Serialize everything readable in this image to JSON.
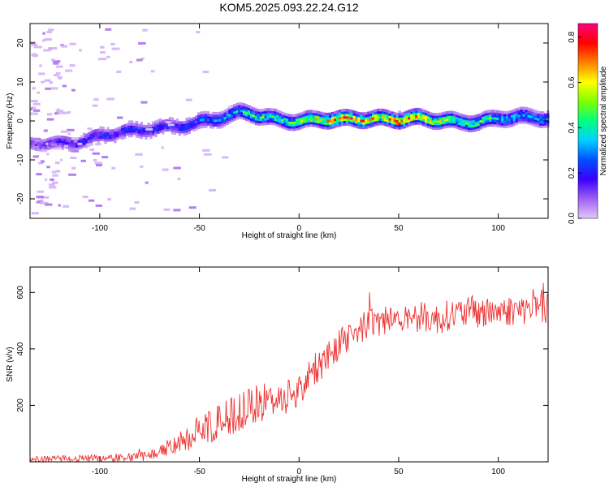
{
  "title": "KOM5.2025.093.22.24.G12",
  "chart_data": [
    {
      "type": "heatmap",
      "xlabel": "Height of straight line (km)",
      "ylabel": "Frequency (Hz)",
      "xlim": [
        -135,
        125
      ],
      "ylim": [
        -25,
        25
      ],
      "x_ticks": [
        -100,
        -50,
        0,
        50,
        100
      ],
      "x_tick_labels": [
        "-100",
        "-50",
        "0",
        "50",
        "100"
      ],
      "y_ticks": [
        -20,
        -10,
        0,
        10,
        20
      ],
      "y_tick_labels": [
        "-20",
        "-10",
        "0",
        "10",
        "20"
      ],
      "grid": false,
      "colorbar": {
        "label": "Normalized spectral amplitude",
        "range": [
          0,
          0.86
        ],
        "ticks": [
          0,
          0.2,
          0.4,
          0.6,
          0.8
        ],
        "tick_labels": [
          "0.0",
          "0.2",
          "0.4",
          "0.6",
          "0.8"
        ],
        "colors": [
          "#e0c8f8",
          "#a060f0",
          "#3a00ff",
          "#0050ff",
          "#00d0ff",
          "#00ff80",
          "#80ff00",
          "#ffff00",
          "#ff8000",
          "#ff0000",
          "#ff0080"
        ]
      },
      "ridge": {
        "x": [
          -135,
          -120,
          -110,
          -100,
          -90,
          -80,
          -70,
          -60,
          -50,
          -40,
          -30,
          -25,
          -20,
          -10,
          0,
          10,
          20,
          30,
          40,
          50,
          60,
          70,
          80,
          90,
          100,
          110,
          125
        ],
        "freq": [
          -6,
          -6,
          -5.5,
          -4,
          -3,
          -2.5,
          -2,
          -1.5,
          -0.5,
          0.5,
          2,
          1.8,
          1,
          0,
          -0.3,
          0.2,
          0.2,
          0.3,
          0.3,
          0.2,
          0.5,
          0,
          -0.5,
          -0.5,
          0.5,
          0.8,
          0.5
        ],
        "amp": [
          0.12,
          0.18,
          0.2,
          0.2,
          0.2,
          0.22,
          0.22,
          0.24,
          0.28,
          0.3,
          0.4,
          0.45,
          0.42,
          0.45,
          0.5,
          0.6,
          0.75,
          0.7,
          0.6,
          0.8,
          0.65,
          0.55,
          0.45,
          0.5,
          0.4,
          0.35,
          0.3
        ]
      }
    },
    {
      "type": "line",
      "xlabel": "Height of straight line (km)",
      "ylabel": "SNR (v/v)",
      "xlim": [
        -135,
        125
      ],
      "ylim": [
        0,
        690
      ],
      "x_ticks": [
        -100,
        -50,
        0,
        50,
        100
      ],
      "x_tick_labels": [
        "-100",
        "-50",
        "0",
        "50",
        "100"
      ],
      "y_ticks": [
        200,
        400,
        600
      ],
      "y_tick_labels": [
        "200",
        "400",
        "600"
      ],
      "grid": false,
      "series": [
        {
          "color": "#ee3333",
          "x": [
            -135,
            -120,
            -100,
            -90,
            -80,
            -70,
            -65,
            -60,
            -55,
            -50,
            -45,
            -40,
            -35,
            -30,
            -25,
            -20,
            -15,
            -10,
            -5,
            0,
            5,
            10,
            15,
            20,
            25,
            30,
            35,
            40,
            45,
            50,
            55,
            60,
            65,
            70,
            75,
            80,
            85,
            90,
            95,
            100,
            105,
            110,
            115,
            120,
            125
          ],
          "mean": [
            8,
            10,
            14,
            15,
            16,
            35,
            55,
            70,
            90,
            110,
            120,
            140,
            160,
            175,
            190,
            205,
            215,
            225,
            240,
            250,
            300,
            340,
            380,
            420,
            450,
            475,
            490,
            500,
            505,
            510,
            515,
            515,
            510,
            505,
            520,
            525,
            530,
            525,
            530,
            535,
            535,
            540,
            540,
            545,
            545
          ],
          "amp": [
            10,
            12,
            14,
            15,
            16,
            20,
            30,
            40,
            50,
            55,
            60,
            65,
            70,
            70,
            70,
            70,
            70,
            65,
            65,
            60,
            60,
            60,
            60,
            60,
            60,
            60,
            55,
            55,
            55,
            55,
            55,
            55,
            55,
            55,
            55,
            55,
            55,
            55,
            55,
            55,
            55,
            55,
            55,
            55,
            55
          ]
        }
      ]
    }
  ]
}
